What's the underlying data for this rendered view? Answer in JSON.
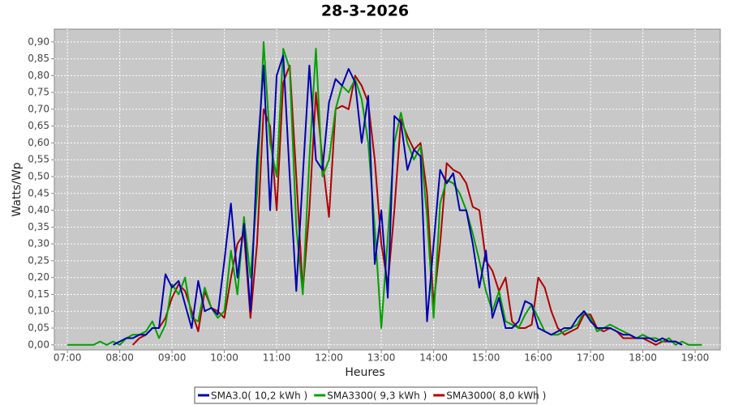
{
  "chart_data": {
    "type": "line",
    "title": "28-3-2026",
    "x_label": "Heures",
    "y_label": "Watts/Wp",
    "xlim": [
      6.75,
      19.48
    ],
    "ylim": [
      -0.015,
      0.938
    ],
    "xticks": [
      {
        "value": 7,
        "label": "07:00"
      },
      {
        "value": 8,
        "label": "08:00"
      },
      {
        "value": 9,
        "label": "09:00"
      },
      {
        "value": 10,
        "label": "10:00"
      },
      {
        "value": 11,
        "label": "11:00"
      },
      {
        "value": 12,
        "label": "12:00"
      },
      {
        "value": 13,
        "label": "13:00"
      },
      {
        "value": 14,
        "label": "14:00"
      },
      {
        "value": 15,
        "label": "15:00"
      },
      {
        "value": 16,
        "label": "16:00"
      },
      {
        "value": 17,
        "label": "17:00"
      },
      {
        "value": 18,
        "label": "18:00"
      },
      {
        "value": 19,
        "label": "19:00"
      }
    ],
    "yticks": [
      {
        "value": 0,
        "label": "0,00"
      },
      {
        "value": 0.05,
        "label": "0,05"
      },
      {
        "value": 0.1,
        "label": "0,10"
      },
      {
        "value": 0.15,
        "label": "0,15"
      },
      {
        "value": 0.2,
        "label": "0,20"
      },
      {
        "value": 0.25,
        "label": "0,25"
      },
      {
        "value": 0.3,
        "label": "0,30"
      },
      {
        "value": 0.35,
        "label": "0,35"
      },
      {
        "value": 0.4,
        "label": "0,40"
      },
      {
        "value": 0.45,
        "label": "0,45"
      },
      {
        "value": 0.5,
        "label": "0,50"
      },
      {
        "value": 0.55,
        "label": "0,55"
      },
      {
        "value": 0.6,
        "label": "0,60"
      },
      {
        "value": 0.65,
        "label": "0,65"
      },
      {
        "value": 0.7,
        "label": "0,70"
      },
      {
        "value": 0.75,
        "label": "0,75"
      },
      {
        "value": 0.8,
        "label": "0,80"
      },
      {
        "value": 0.85,
        "label": "0,85"
      },
      {
        "value": 0.9,
        "label": "0,90"
      }
    ],
    "grid": true,
    "x": [
      7,
      7.125,
      7.25,
      7.375,
      7.5,
      7.625,
      7.75,
      7.875,
      8,
      8.125,
      8.25,
      8.375,
      8.5,
      8.625,
      8.75,
      8.875,
      9,
      9.125,
      9.25,
      9.375,
      9.5,
      9.625,
      9.75,
      9.875,
      10,
      10.125,
      10.25,
      10.375,
      10.5,
      10.625,
      10.75,
      10.875,
      11,
      11.125,
      11.25,
      11.375,
      11.5,
      11.625,
      11.75,
      11.875,
      12,
      12.125,
      12.25,
      12.375,
      12.5,
      12.625,
      12.75,
      12.875,
      13,
      13.125,
      13.25,
      13.375,
      13.5,
      13.625,
      13.75,
      13.875,
      14,
      14.125,
      14.25,
      14.375,
      14.5,
      14.625,
      14.75,
      14.875,
      15,
      15.125,
      15.25,
      15.375,
      15.5,
      15.625,
      15.75,
      15.875,
      16,
      16.125,
      16.25,
      16.375,
      16.5,
      16.625,
      16.75,
      16.875,
      17,
      17.125,
      17.25,
      17.375,
      17.5,
      17.625,
      17.75,
      17.875,
      18,
      18.125,
      18.25,
      18.375,
      18.5,
      18.625,
      18.75,
      18.875,
      19,
      19.125,
      19.25
    ],
    "series": [
      {
        "name": "SMA3.0( 10,2 kWh )",
        "color": "#0000b0",
        "values": [
          null,
          null,
          null,
          null,
          null,
          null,
          null,
          0,
          0.01,
          0.02,
          0.02,
          0.03,
          0.03,
          0.05,
          0.05,
          0.21,
          0.17,
          0.19,
          0.12,
          0.05,
          0.19,
          0.1,
          0.11,
          0.09,
          0.25,
          0.42,
          0.2,
          0.36,
          0.1,
          0.55,
          0.83,
          0.4,
          0.8,
          0.86,
          0.5,
          0.16,
          0.5,
          0.83,
          0.55,
          0.52,
          0.72,
          0.79,
          0.77,
          0.82,
          0.78,
          0.6,
          0.74,
          0.24,
          0.4,
          0.14,
          0.68,
          0.66,
          0.52,
          0.58,
          0.56,
          0.07,
          0.3,
          0.52,
          0.48,
          0.51,
          0.4,
          0.4,
          0.3,
          0.17,
          0.28,
          0.08,
          0.14,
          0.05,
          0.05,
          0.07,
          0.13,
          0.12,
          0.05,
          0.04,
          0.03,
          0.04,
          0.05,
          0.05,
          0.08,
          0.1,
          0.07,
          0.05,
          0.05,
          0.05,
          0.04,
          0.03,
          0.03,
          0.02,
          0.02,
          0.02,
          0.01,
          0.02,
          0.01,
          0.01,
          0,
          null,
          null,
          null,
          null
        ]
      },
      {
        "name": "SMA3300( 9,3 kWh )",
        "color": "#00a000",
        "values": [
          0,
          0,
          0,
          0,
          0,
          0.01,
          0,
          0.01,
          0,
          0.02,
          0.03,
          0.03,
          0.04,
          0.07,
          0.02,
          0.06,
          0.18,
          0.15,
          0.2,
          0.08,
          0.07,
          0.17,
          0.11,
          0.08,
          0.1,
          0.28,
          0.15,
          0.38,
          0.2,
          0.45,
          0.9,
          0.6,
          0.5,
          0.88,
          0.82,
          0.35,
          0.15,
          0.55,
          0.88,
          0.5,
          0.55,
          0.7,
          0.77,
          0.75,
          0.79,
          0.73,
          0.6,
          0.35,
          0.05,
          0.32,
          0.6,
          0.69,
          0.6,
          0.55,
          0.59,
          0.38,
          0.08,
          0.42,
          0.49,
          0.48,
          0.45,
          0.4,
          0.33,
          0.25,
          0.16,
          0.1,
          0.16,
          0.07,
          0.06,
          0.05,
          0.09,
          0.12,
          0.08,
          0.04,
          0.03,
          0.03,
          0.04,
          0.05,
          0.06,
          0.1,
          0.08,
          0.04,
          0.05,
          0.06,
          0.05,
          0.04,
          0.03,
          0.02,
          0.03,
          0.02,
          0.02,
          0.01,
          0.02,
          0,
          0.01,
          0,
          0,
          0,
          null
        ]
      },
      {
        "name": "SMA3000( 8,0 kWh )",
        "color": "#b00000",
        "values": [
          null,
          null,
          null,
          null,
          null,
          null,
          null,
          null,
          null,
          null,
          0,
          0.02,
          0.03,
          0.05,
          0.05,
          0.08,
          0.14,
          0.18,
          0.16,
          0.1,
          0.04,
          0.16,
          0.11,
          0.1,
          0.08,
          0.2,
          0.3,
          0.33,
          0.08,
          0.3,
          0.7,
          0.65,
          0.4,
          0.78,
          0.83,
          0.5,
          0.16,
          0.4,
          0.75,
          0.55,
          0.38,
          0.7,
          0.71,
          0.7,
          0.8,
          0.77,
          0.72,
          0.55,
          0.3,
          0.18,
          0.4,
          0.67,
          0.62,
          0.58,
          0.6,
          0.45,
          0.12,
          0.3,
          0.54,
          0.52,
          0.51,
          0.48,
          0.41,
          0.4,
          0.25,
          0.22,
          0.16,
          0.2,
          0.07,
          0.05,
          0.05,
          0.06,
          0.2,
          0.17,
          0.1,
          0.05,
          0.03,
          0.04,
          0.05,
          0.09,
          0.09,
          0.05,
          0.04,
          0.05,
          0.04,
          0.02,
          0.02,
          0.02,
          0.02,
          0.01,
          0,
          0.01,
          0.01,
          0.01,
          0,
          null,
          null,
          null,
          null
        ]
      }
    ]
  }
}
